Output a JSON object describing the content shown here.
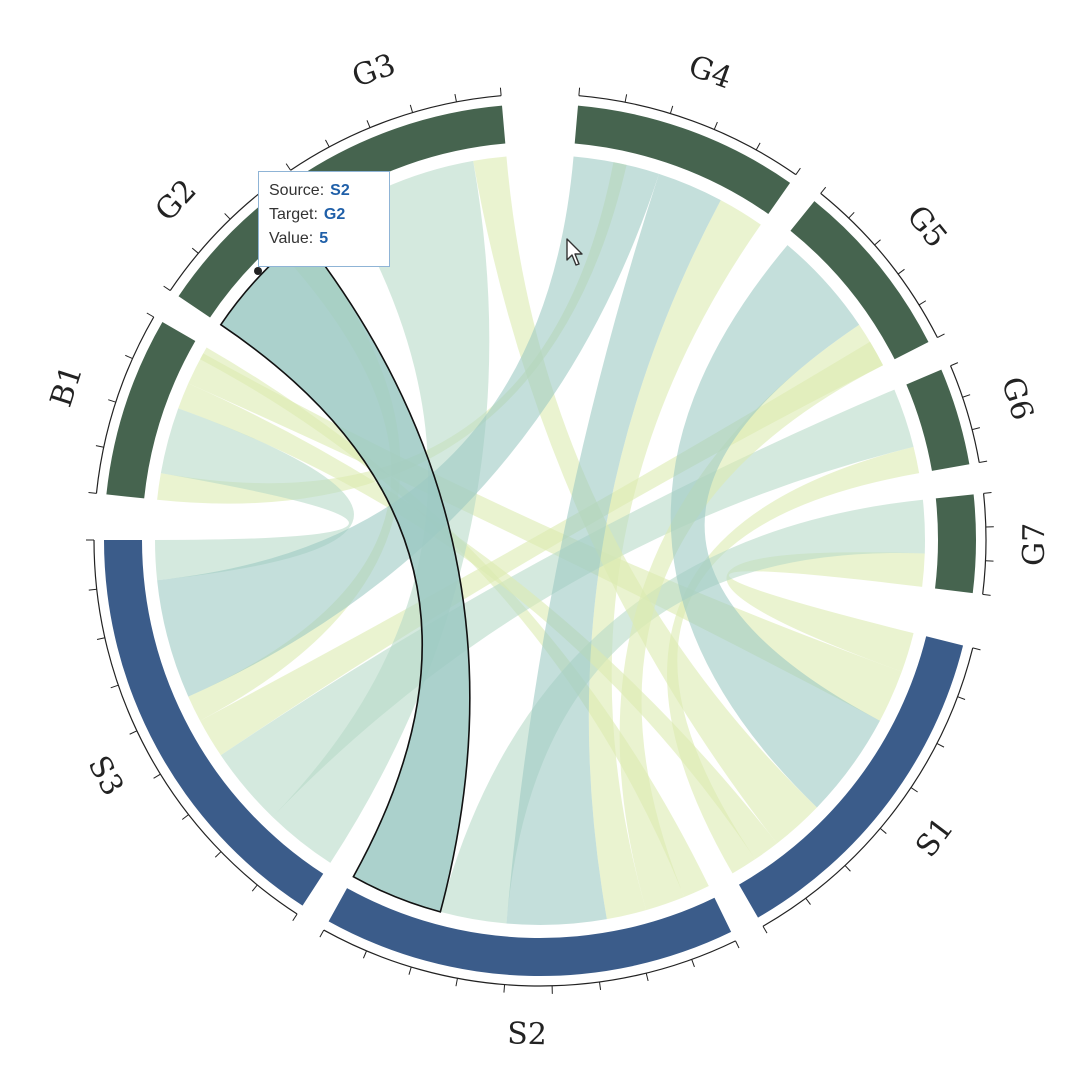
{
  "chart_data": {
    "type": "chord",
    "title": "",
    "groups": [
      {
        "name": "G4",
        "start": 5,
        "end": 35,
        "color": "#46644f",
        "ticks": 5
      },
      {
        "name": "G5",
        "start": 39,
        "end": 63,
        "color": "#46644f",
        "ticks": 5
      },
      {
        "name": "G6",
        "start": 67,
        "end": 80,
        "color": "#46644f",
        "ticks": 3
      },
      {
        "name": "G7",
        "start": 84,
        "end": 97,
        "color": "#46644f",
        "ticks": 3
      },
      {
        "name": "S1",
        "start": 104,
        "end": 150,
        "color": "#3b5c8a",
        "ticks": 7
      },
      {
        "name": "S2",
        "start": 154,
        "end": 209,
        "color": "#3b5c8a",
        "ticks": 9
      },
      {
        "name": "S3",
        "start": 213,
        "end": 270,
        "color": "#3b5c8a",
        "ticks": 9
      },
      {
        "name": "B1",
        "start": 276,
        "end": 300,
        "color": "#46644f",
        "ticks": 4
      },
      {
        "name": "G2",
        "start": 304,
        "end": 322,
        "color": "#46644f",
        "ticks": 3
      },
      {
        "name": "G3",
        "start": 326,
        "end": 355,
        "color": "#46644f",
        "ticks": 5
      }
    ],
    "ribbons": [
      {
        "source": "S2",
        "target": "G2",
        "a": [
          195,
          209
        ],
        "b": [
          304,
          322
        ],
        "color": "#9cc9c3",
        "highlight": true
      },
      {
        "source": "S3",
        "target": "G4",
        "a": [
          246,
          264
        ],
        "b": [
          5,
          18
        ],
        "color": "#9cc9c3"
      },
      {
        "source": "S2",
        "target": "G4",
        "a": [
          170,
          185
        ],
        "b": [
          18,
          28
        ],
        "color": "#9cc9c3"
      },
      {
        "source": "S1",
        "target": "G5",
        "a": [
          118,
          134
        ],
        "b": [
          40,
          56
        ],
        "color": "#9cc9c3"
      },
      {
        "source": "S3",
        "target": "G3",
        "a": [
          213,
          224
        ],
        "b": [
          330,
          350
        ],
        "color": "#b7dbc8"
      },
      {
        "source": "S1",
        "target": "G3",
        "a": [
          134,
          142
        ],
        "b": [
          350,
          355
        ],
        "color": "#dcebb0"
      },
      {
        "source": "S3",
        "target": "B1",
        "a": [
          264,
          270
        ],
        "b": [
          280,
          290
        ],
        "color": "#b7dbc8"
      },
      {
        "source": "S1",
        "target": "B1",
        "a": [
          142,
          146
        ],
        "b": [
          290,
          294
        ],
        "color": "#dcebb0"
      },
      {
        "source": "S2",
        "target": "G5",
        "a": [
          158,
          164
        ],
        "b": [
          56,
          63
        ],
        "color": "#dcebb0"
      },
      {
        "source": "S3",
        "target": "G6",
        "a": [
          224,
          236
        ],
        "b": [
          67,
          76
        ],
        "color": "#b7dbc8"
      },
      {
        "source": "S2",
        "target": "G7",
        "a": [
          185,
          195
        ],
        "b": [
          84,
          92
        ],
        "color": "#b7dbc8"
      },
      {
        "source": "S1",
        "target": "G7",
        "a": [
          104,
          110
        ],
        "b": [
          92,
          97
        ],
        "color": "#dcebb0"
      },
      {
        "source": "S3",
        "target": "G5",
        "a": [
          236,
          242
        ],
        "b": [
          59,
          63
        ],
        "color": "#dcebb0"
      },
      {
        "source": "S2",
        "target": "G4",
        "a": [
          164,
          170
        ],
        "b": [
          28,
          35
        ],
        "color": "#dcebb0"
      },
      {
        "source": "S1",
        "target": "B1",
        "a": [
          110,
          118
        ],
        "b": [
          294,
          299
        ],
        "color": "#dcebb0"
      },
      {
        "source": "S3",
        "target": "G2",
        "a": [
          242,
          246
        ],
        "b": [
          318,
          322
        ],
        "color": "#dcebb0"
      },
      {
        "source": "G4",
        "target": "B1",
        "a": [
          11,
          13
        ],
        "b": [
          276,
          280
        ],
        "color": "#dcebb0"
      },
      {
        "source": "S2",
        "target": "B1",
        "a": [
          154,
          158
        ],
        "b": [
          298,
          300
        ],
        "color": "#dcebb0"
      },
      {
        "source": "S1",
        "target": "G6",
        "a": [
          146,
          150
        ],
        "b": [
          76,
          80
        ],
        "color": "#dcebb0"
      }
    ]
  },
  "tooltip": {
    "source_label": "Source:",
    "source_value": "S2",
    "target_label": "Target:",
    "target_value": "G2",
    "value_label": "Value:",
    "value_value": "5"
  }
}
